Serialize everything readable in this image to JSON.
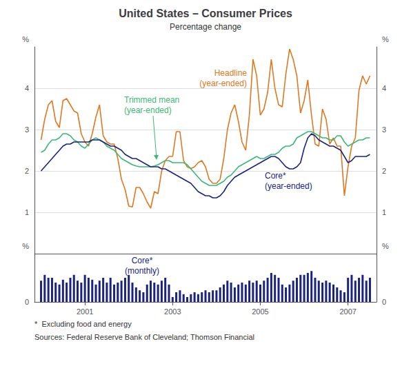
{
  "chart_data": [
    {
      "type": "line",
      "title": "United States – Consumer Prices",
      "subtitle": "Percentage change",
      "x": [
        2000.0,
        2000.083,
        2000.167,
        2000.25,
        2000.333,
        2000.417,
        2000.5,
        2000.583,
        2000.667,
        2000.75,
        2000.833,
        2000.917,
        2001.0,
        2001.083,
        2001.167,
        2001.25,
        2001.333,
        2001.417,
        2001.5,
        2001.583,
        2001.667,
        2001.75,
        2001.833,
        2001.917,
        2002.0,
        2002.083,
        2002.167,
        2002.25,
        2002.333,
        2002.417,
        2002.5,
        2002.583,
        2002.667,
        2002.75,
        2002.833,
        2002.917,
        2003.0,
        2003.083,
        2003.167,
        2003.25,
        2003.333,
        2003.417,
        2003.5,
        2003.583,
        2003.667,
        2003.75,
        2003.833,
        2003.917,
        2004.0,
        2004.083,
        2004.167,
        2004.25,
        2004.333,
        2004.417,
        2004.5,
        2004.583,
        2004.667,
        2004.75,
        2004.833,
        2004.917,
        2005.0,
        2005.083,
        2005.167,
        2005.25,
        2005.333,
        2005.417,
        2005.5,
        2005.583,
        2005.667,
        2005.75,
        2005.833,
        2005.917,
        2006.0,
        2006.083,
        2006.167,
        2006.25,
        2006.333,
        2006.417,
        2006.5,
        2006.583,
        2006.667,
        2006.75,
        2006.833,
        2006.917,
        2007.0,
        2007.083,
        2007.167,
        2007.25,
        2007.333,
        2007.417,
        2007.5
      ],
      "xlim": [
        1999.85,
        2007.65
      ],
      "ylim": [
        0.0,
        5.0
      ],
      "yticks": [
        1,
        2,
        3,
        4
      ],
      "ylabel": "%",
      "y2lim": [
        0.0,
        5.0
      ],
      "y2ticks": [
        1,
        2,
        3,
        4
      ],
      "y2label": "%",
      "grid": true,
      "tick_labels": "y",
      "series": [
        {
          "name": "Headline\n(year-ended)",
          "color": "#e07820",
          "values": [
            2.75,
            3.25,
            3.6,
            3.7,
            3.2,
            3.05,
            3.7,
            3.75,
            3.6,
            3.45,
            3.4,
            2.9,
            2.7,
            2.6,
            2.9,
            3.3,
            3.6,
            2.85,
            2.7,
            2.65,
            2.65,
            2.3,
            1.8,
            1.55,
            1.15,
            1.13,
            1.6,
            1.6,
            1.45,
            1.25,
            1.1,
            1.5,
            1.45,
            2.0,
            2.25,
            2.35,
            2.35,
            2.95,
            2.95,
            2.25,
            2.1,
            2.06,
            2.1,
            2.2,
            2.25,
            2.1,
            1.8,
            1.7,
            1.7,
            1.8,
            2.3,
            3.0,
            3.4,
            3.6,
            3.2,
            2.7,
            2.5,
            3.35,
            4.7,
            4.3,
            3.35,
            3.5,
            3.9,
            4.7,
            4.0,
            3.6,
            3.55,
            4.35,
            4.95,
            4.7,
            4.3,
            3.4,
            3.7,
            4.2,
            3.35,
            2.65,
            2.6,
            3.5,
            3.25,
            2.65,
            2.8,
            2.6,
            2.6,
            1.4,
            2.1,
            2.6,
            2.8,
            3.95,
            4.3,
            4.1,
            4.3
          ]
        },
        {
          "name": "Trimmed mean\n(year-ended)",
          "color": "#3cb878",
          "values": [
            2.45,
            2.5,
            2.65,
            2.75,
            2.75,
            2.8,
            2.9,
            2.9,
            2.85,
            2.75,
            2.7,
            2.6,
            2.55,
            2.65,
            2.75,
            2.8,
            2.75,
            2.7,
            2.6,
            2.55,
            2.5,
            2.4,
            2.3,
            2.25,
            2.2,
            2.15,
            2.12,
            2.1,
            2.1,
            2.1,
            2.1,
            2.12,
            2.15,
            2.2,
            2.25,
            2.25,
            2.2,
            2.2,
            2.2,
            2.2,
            2.15,
            2.05,
            1.95,
            1.85,
            1.75,
            1.7,
            1.65,
            1.65,
            1.65,
            1.7,
            1.75,
            1.85,
            1.9,
            2.0,
            2.1,
            2.15,
            2.2,
            2.25,
            2.3,
            2.35,
            2.3,
            2.3,
            2.35,
            2.4,
            2.4,
            2.45,
            2.55,
            2.6,
            2.6,
            2.65,
            2.8,
            2.85,
            2.9,
            2.95,
            2.95,
            2.9,
            2.85,
            2.8,
            2.8,
            2.75,
            2.75,
            2.85,
            2.85,
            2.7,
            2.6,
            2.65,
            2.7,
            2.75,
            2.75,
            2.8,
            2.8
          ]
        },
        {
          "name": "Core*\n(year-ended)",
          "color": "#1a237e",
          "values": [
            2.0,
            2.1,
            2.2,
            2.3,
            2.4,
            2.5,
            2.6,
            2.65,
            2.65,
            2.7,
            2.7,
            2.7,
            2.7,
            2.7,
            2.75,
            2.75,
            2.75,
            2.7,
            2.65,
            2.6,
            2.6,
            2.55,
            2.5,
            2.4,
            2.35,
            2.3,
            2.3,
            2.25,
            2.2,
            2.15,
            2.1,
            2.1,
            2.1,
            2.05,
            2.05,
            2.0,
            1.95,
            1.9,
            1.85,
            1.8,
            1.75,
            1.7,
            1.6,
            1.5,
            1.45,
            1.4,
            1.4,
            1.35,
            1.35,
            1.4,
            1.5,
            1.65,
            1.75,
            1.85,
            1.9,
            1.95,
            2.0,
            2.05,
            2.1,
            2.15,
            2.2,
            2.25,
            2.3,
            2.35,
            2.35,
            2.3,
            2.2,
            2.1,
            2.05,
            2.05,
            2.1,
            2.2,
            2.55,
            2.8,
            2.9,
            2.85,
            2.75,
            2.7,
            2.65,
            2.6,
            2.6,
            2.55,
            2.5,
            2.35,
            2.2,
            2.25,
            2.35,
            2.35,
            2.35,
            2.35,
            2.4
          ]
        }
      ]
    },
    {
      "type": "bar",
      "x": [
        2000.0,
        2000.083,
        2000.167,
        2000.25,
        2000.333,
        2000.417,
        2000.5,
        2000.583,
        2000.667,
        2000.75,
        2000.833,
        2000.917,
        2001.0,
        2001.083,
        2001.167,
        2001.25,
        2001.333,
        2001.417,
        2001.5,
        2001.583,
        2001.667,
        2001.75,
        2001.833,
        2001.917,
        2002.0,
        2002.083,
        2002.167,
        2002.25,
        2002.333,
        2002.417,
        2002.5,
        2002.583,
        2002.667,
        2002.75,
        2002.833,
        2002.917,
        2003.0,
        2003.083,
        2003.167,
        2003.25,
        2003.333,
        2003.417,
        2003.5,
        2003.583,
        2003.667,
        2003.75,
        2003.833,
        2003.917,
        2004.0,
        2004.083,
        2004.167,
        2004.25,
        2004.333,
        2004.417,
        2004.5,
        2004.583,
        2004.667,
        2004.75,
        2004.833,
        2004.917,
        2005.0,
        2005.083,
        2005.167,
        2005.25,
        2005.333,
        2005.417,
        2005.5,
        2005.583,
        2005.667,
        2005.75,
        2005.833,
        2005.917,
        2006.0,
        2006.083,
        2006.167,
        2006.25,
        2006.333,
        2006.417,
        2006.5,
        2006.583,
        2006.667,
        2006.75,
        2006.833,
        2006.917,
        2007.0,
        2007.083,
        2007.167,
        2007.25,
        2007.333,
        2007.417,
        2007.5
      ],
      "xlim": [
        1999.85,
        2007.65
      ],
      "xticks": [
        2001,
        2003,
        2005,
        2007
      ],
      "ylim": [
        0.0,
        0.5
      ],
      "yticks": [
        0
      ],
      "ylabel": "%",
      "y2lim": [
        0.0,
        0.5
      ],
      "y2ticks": [
        0
      ],
      "y2label": "%",
      "grid": true,
      "series": [
        {
          "name": "Core*\n(monthly)",
          "color": "#1a237e",
          "values": [
            0.22,
            0.28,
            0.25,
            0.25,
            0.2,
            0.18,
            0.23,
            0.2,
            0.25,
            0.28,
            0.22,
            0.2,
            0.28,
            0.25,
            0.23,
            0.18,
            0.22,
            0.25,
            0.2,
            0.25,
            0.18,
            0.2,
            0.22,
            0.25,
            0.28,
            0.2,
            0.15,
            0.12,
            0.1,
            0.18,
            0.22,
            0.2,
            0.18,
            0.22,
            0.25,
            0.18,
            0.05,
            0.1,
            0.12,
            0.08,
            0.05,
            0.08,
            0.1,
            0.08,
            0.1,
            0.12,
            0.1,
            0.12,
            0.12,
            0.15,
            0.18,
            0.22,
            0.2,
            0.15,
            0.18,
            0.2,
            0.18,
            0.22,
            0.2,
            0.22,
            0.18,
            0.22,
            0.25,
            0.3,
            0.28,
            0.25,
            0.18,
            0.15,
            0.18,
            0.22,
            0.25,
            0.28,
            0.28,
            0.3,
            0.32,
            0.25,
            0.22,
            0.2,
            0.22,
            0.2,
            0.18,
            0.15,
            0.12,
            0.1,
            0.25,
            0.28,
            0.22,
            0.25,
            0.28,
            0.22,
            0.25
          ]
        }
      ],
      "footnotes": [
        "*  Excluding food and energy",
        "Sources: Federal Reserve Bank of Cleveland; Thomson Financial"
      ]
    }
  ]
}
